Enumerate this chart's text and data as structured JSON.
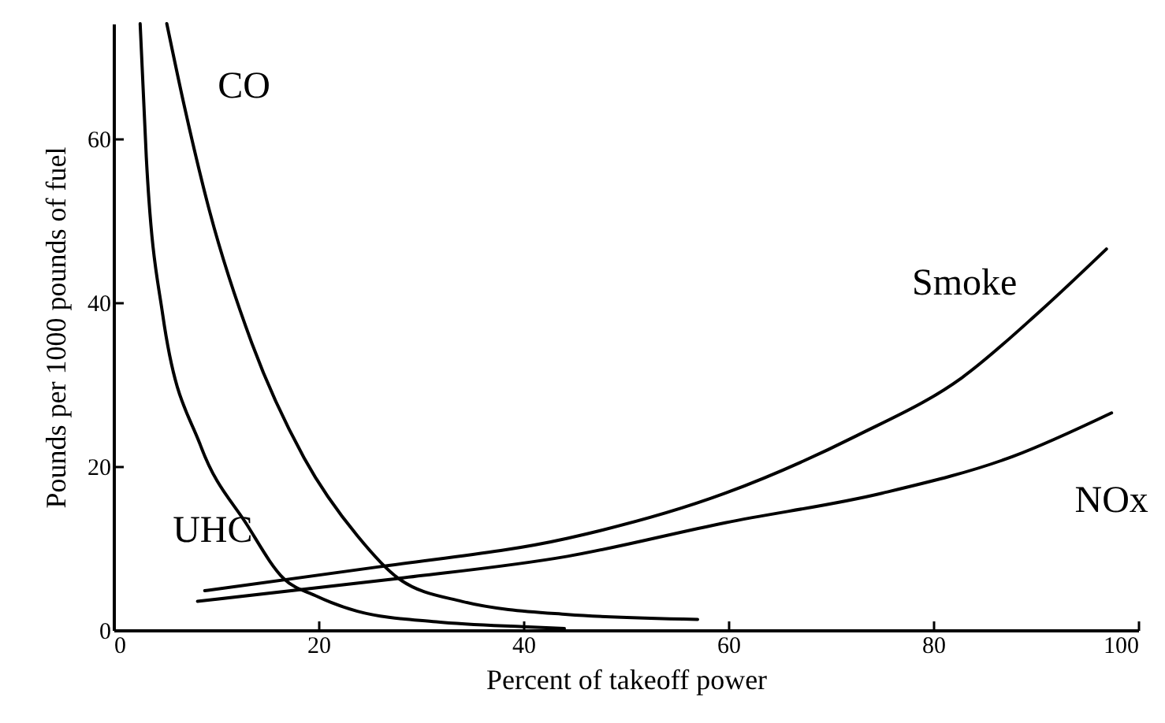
{
  "chart_data": {
    "type": "line",
    "xlabel": "Percent of takeoff power",
    "ylabel": "Pounds per 1000 pounds of fuel",
    "xlim": [
      0,
      100
    ],
    "ylim": [
      0,
      74
    ],
    "xticks": [
      0,
      20,
      40,
      60,
      80,
      100
    ],
    "yticks": [
      0,
      20,
      40,
      60
    ],
    "grid": false,
    "marker": "none",
    "line_style": "solid",
    "series": [
      {
        "name": "UHC",
        "color": "#000000",
        "x": [
          2.6,
          3.2,
          4.8,
          8.5,
          13,
          16.6,
          19.7,
          23.8,
          31.5,
          40,
          44
        ],
        "values": [
          74,
          57.7,
          38.5,
          22.5,
          12.9,
          6.3,
          4.2,
          2.3,
          1,
          0.4,
          0.2
        ]
      },
      {
        "name": "CO",
        "color": "#000000",
        "x": [
          5.2,
          6.9,
          9.4,
          13.5,
          18.6,
          23.8,
          27.8,
          34,
          44.3,
          57
        ],
        "values": [
          74,
          64,
          51,
          35,
          21,
          11.5,
          6.3,
          3.5,
          1.9,
          1.3
        ]
      },
      {
        "name": "Smoke",
        "color": "#000000",
        "x": [
          8.9,
          25.8,
          44.3,
          59.7,
          72.5,
          82.8,
          90.5,
          96.9
        ],
        "values": [
          4.8,
          7.7,
          11.2,
          16.7,
          23.7,
          30.8,
          39,
          46.5
        ]
      },
      {
        "name": "NOx",
        "color": "#000000",
        "x": [
          8.2,
          27.8,
          44.3,
          59.7,
          75,
          87.8,
          97.4
        ],
        "values": [
          3.5,
          6.3,
          9,
          13.1,
          16.7,
          21.2,
          26.5
        ]
      }
    ]
  }
}
